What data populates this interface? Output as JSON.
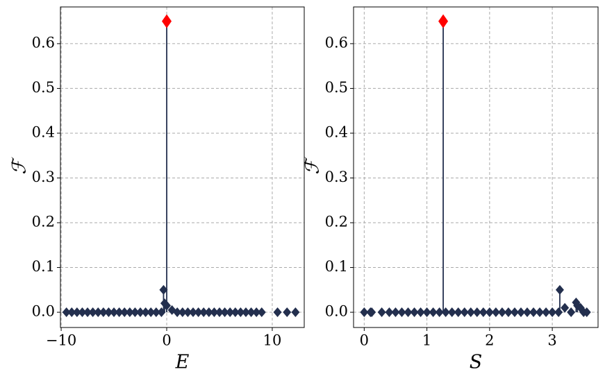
{
  "chart_data": [
    {
      "type": "stem",
      "xlabel": "E",
      "ylabel": "ℱ",
      "color": "#232f4e",
      "grid": true,
      "x": [
        -9.5,
        -9,
        -8.5,
        -8,
        -7.5,
        -7,
        -6.5,
        -6,
        -5.5,
        -5,
        -4.5,
        -4,
        -3.5,
        -3,
        -2.5,
        -2,
        -1.5,
        -1,
        -0.5,
        -0.3,
        -0.2,
        0,
        0.5,
        1,
        1.5,
        2,
        2.5,
        3,
        3.5,
        4,
        4.5,
        5,
        5.5,
        6,
        6.5,
        7,
        7.5,
        8,
        8.5,
        9,
        10.5,
        11.4,
        12.2
      ],
      "values": [
        0,
        0,
        0,
        0,
        0,
        0,
        0,
        0,
        0,
        0,
        0,
        0,
        0,
        0,
        0,
        0,
        0,
        0,
        0,
        0.05,
        0.02,
        0.015,
        0.005,
        0,
        0,
        0,
        0,
        0,
        0,
        0,
        0,
        0,
        0,
        0,
        0,
        0,
        0,
        0,
        0,
        0,
        0,
        0,
        0
      ],
      "highlight": {
        "x": 0,
        "y": 0.65,
        "color": "#ff0000"
      },
      "xlim": [
        -10.07,
        13.03
      ],
      "ylim": [
        -0.034,
        0.682
      ],
      "xticks": [
        {
          "value": -10,
          "label": "−10"
        },
        0,
        10
      ],
      "yticks": [
        {
          "value": 0,
          "label": "0.0"
        },
        0.1,
        0.2,
        0.3,
        0.4,
        0.5,
        0.6
      ]
    },
    {
      "type": "stem",
      "xlabel": "S",
      "ylabel": "ℱ",
      "color": "#232f4e",
      "grid": true,
      "x": [
        0,
        0.1,
        0.12,
        0.28,
        0.4,
        0.5,
        0.6,
        0.7,
        0.8,
        0.9,
        1.0,
        1.1,
        1.2,
        1.3,
        1.4,
        1.5,
        1.6,
        1.7,
        1.8,
        1.9,
        2.0,
        2.1,
        2.2,
        2.3,
        2.4,
        2.5,
        2.6,
        2.7,
        2.8,
        2.9,
        3.0,
        3.1,
        3.12,
        3.2,
        3.3,
        3.38,
        3.4,
        3.45,
        3.5,
        3.55
      ],
      "values": [
        0,
        0,
        0,
        0,
        0,
        0,
        0,
        0,
        0,
        0,
        0,
        0,
        0,
        0,
        0,
        0,
        0,
        0,
        0,
        0,
        0,
        0,
        0,
        0,
        0,
        0,
        0,
        0,
        0,
        0,
        0,
        0,
        0.05,
        0.01,
        0,
        0.022,
        0.015,
        0.01,
        0,
        0
      ],
      "highlight": {
        "x": 1.26,
        "y": 0.65,
        "color": "#ff0000"
      },
      "xlim": [
        -0.17,
        3.73
      ],
      "ylim": [
        -0.034,
        0.682
      ],
      "xticks": [
        0,
        1,
        2,
        3
      ],
      "yticks": [
        {
          "value": 0,
          "label": "0.0"
        },
        0.1,
        0.2,
        0.3,
        0.4,
        0.5,
        0.6
      ]
    }
  ]
}
